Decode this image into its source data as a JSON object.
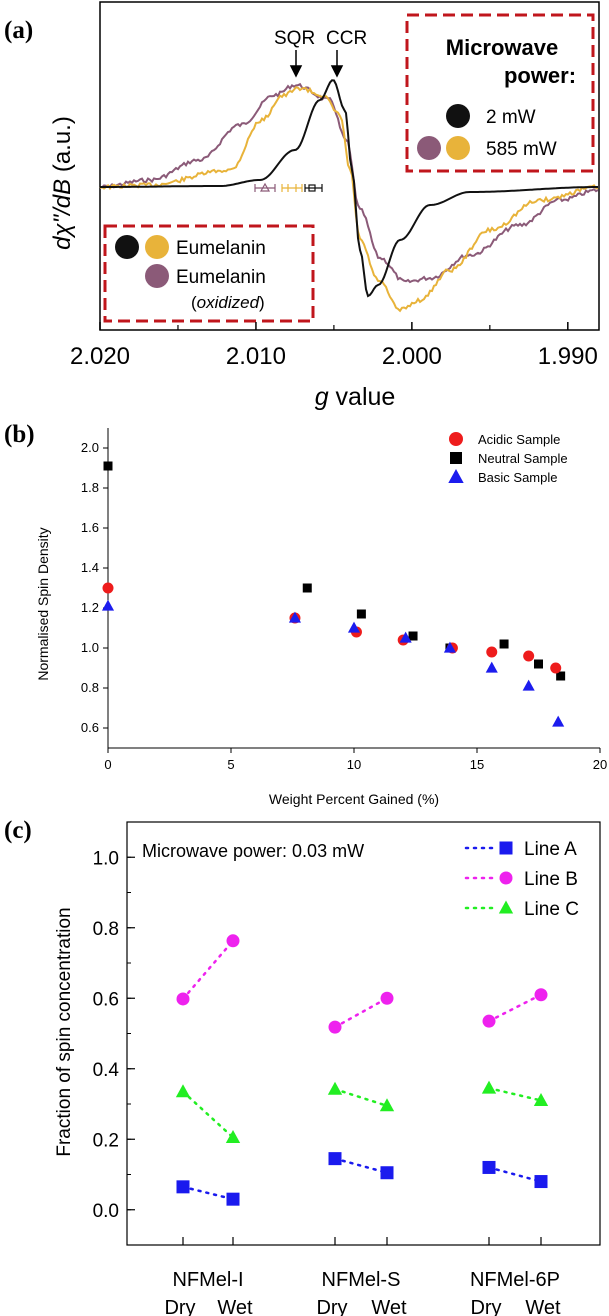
{
  "chart_data": [
    {
      "panel_label": "(a)",
      "type": "line",
      "xlabel_italic": "g",
      "xlabel_rest": " value",
      "ylabel_parts": {
        "italic": "dχ\"/dB",
        "rest": "  (a.u.)"
      },
      "x_range": [
        2.02,
        1.988
      ],
      "x_ticks": [
        "2.020",
        "2.010",
        "2.000",
        "1.990"
      ],
      "x_tick_values": [
        2.02,
        2.01,
        2.0,
        1.99
      ],
      "annotations": {
        "sqr": "SQR",
        "ccr": "CCR"
      },
      "power_legend": {
        "title_line1": "Microwave",
        "title_line2": "power:",
        "entries": [
          {
            "label": "2 mW",
            "colors": [
              "#111111"
            ]
          },
          {
            "label": "585 mW",
            "colors": [
              "#8b5a78",
              "#e8b33a"
            ]
          }
        ]
      },
      "sample_legend": {
        "entries": [
          {
            "label": "Eumelanin",
            "colors": [
              "#111111",
              "#e8b33a"
            ]
          },
          {
            "label": "Eumelanin",
            "colors": [
              "#8b5a78"
            ]
          }
        ],
        "note_open": "(",
        "note_italic": "oxidized",
        "note_close": ")"
      },
      "series": [
        {
          "color": "#111111"
        },
        {
          "color": "#e8b33a"
        },
        {
          "color": "#8b5a78"
        }
      ]
    },
    {
      "panel_label": "(b)",
      "type": "scatter",
      "xlabel": "Weight Percent Gained (%)",
      "ylabel": "Normalised Spin Density",
      "xlim": [
        0,
        20
      ],
      "ylim": [
        0.5,
        2.1
      ],
      "x_ticks": [
        0,
        5,
        10,
        15,
        20
      ],
      "y_ticks": [
        "0.6",
        "0.8",
        "1.0",
        "1.2",
        "1.4",
        "1.6",
        "1.8",
        "2.0"
      ],
      "y_tick_values": [
        0.6,
        0.8,
        1.0,
        1.2,
        1.4,
        1.6,
        1.8,
        2.0
      ],
      "legend_position": "top-right",
      "series": [
        {
          "name": "Acidic Sample",
          "marker": "circle",
          "color": "#ee1c1c",
          "points": [
            [
              0.0,
              1.3
            ],
            [
              7.6,
              1.15
            ],
            [
              10.1,
              1.08
            ],
            [
              12.0,
              1.04
            ],
            [
              14.0,
              1.0
            ],
            [
              15.6,
              0.98
            ],
            [
              17.1,
              0.96
            ],
            [
              18.2,
              0.9
            ]
          ]
        },
        {
          "name": "Neutral Sample",
          "marker": "square",
          "color": "#000000",
          "points": [
            [
              0.0,
              1.91
            ],
            [
              8.1,
              1.3
            ],
            [
              10.3,
              1.17
            ],
            [
              12.4,
              1.06
            ],
            [
              13.9,
              1.0
            ],
            [
              16.1,
              1.02
            ],
            [
              17.5,
              0.92
            ],
            [
              18.4,
              0.86
            ]
          ]
        },
        {
          "name": "Basic Sample",
          "marker": "triangle",
          "color": "#1c1cee",
          "points": [
            [
              0.0,
              1.21
            ],
            [
              7.6,
              1.15
            ],
            [
              10.0,
              1.1
            ],
            [
              12.1,
              1.05
            ],
            [
              13.9,
              1.0
            ],
            [
              15.6,
              0.9
            ],
            [
              17.1,
              0.81
            ],
            [
              18.3,
              0.63
            ]
          ]
        }
      ]
    },
    {
      "panel_label": "(c)",
      "type": "line",
      "ylabel": "Fraction of spin concentration",
      "ylim": [
        -0.1,
        1.1
      ],
      "y_ticks": [
        "0.0",
        "0.2",
        "0.4",
        "0.6",
        "0.8",
        "1.0"
      ],
      "y_tick_values": [
        0.0,
        0.2,
        0.4,
        0.6,
        0.8,
        1.0
      ],
      "annotation": "Microwave power: 0.03 mW",
      "categories": [
        "NFMel-I",
        "NFMel-S",
        "NFMel-6P"
      ],
      "subcategories": [
        "Dry",
        "Wet"
      ],
      "series": [
        {
          "name": "Line A",
          "marker": "square",
          "color": "#1a1aee",
          "values": [
            [
              0.065,
              0.03
            ],
            [
              0.145,
              0.105
            ],
            [
              0.12,
              0.08
            ]
          ]
        },
        {
          "name": "Line B",
          "marker": "circle",
          "color": "#ee22ee",
          "values": [
            [
              0.598,
              0.763
            ],
            [
              0.518,
              0.6
            ],
            [
              0.535,
              0.61
            ]
          ]
        },
        {
          "name": "Line C",
          "marker": "triangle",
          "color": "#22ee22",
          "values": [
            [
              0.335,
              0.205
            ],
            [
              0.342,
              0.295
            ],
            [
              0.345,
              0.31
            ]
          ]
        }
      ]
    }
  ]
}
